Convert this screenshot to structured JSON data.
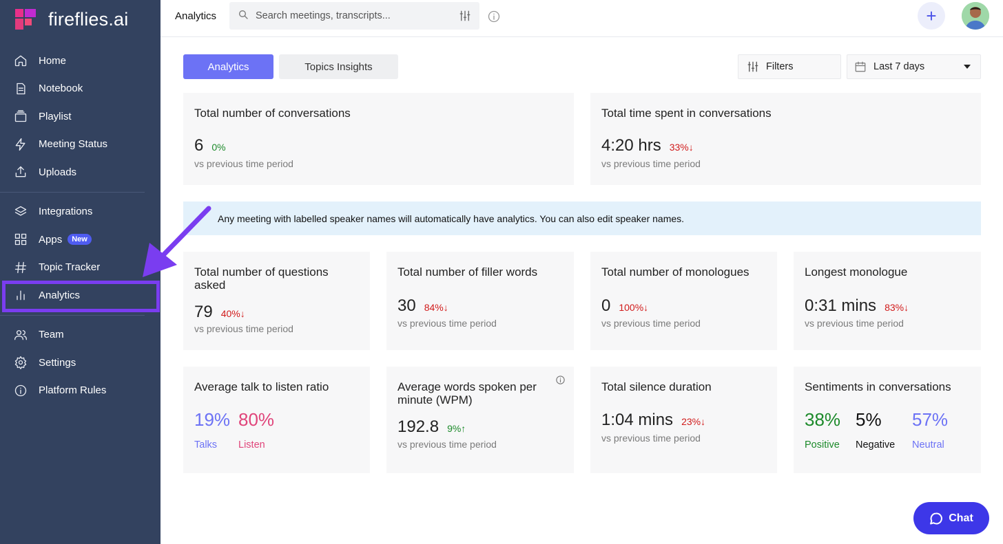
{
  "brand": {
    "name": "fireflies.ai"
  },
  "sidebar": {
    "items": [
      {
        "label": "Home",
        "icon": "home-icon"
      },
      {
        "label": "Notebook",
        "icon": "notebook-icon"
      },
      {
        "label": "Playlist",
        "icon": "playlist-icon"
      },
      {
        "label": "Meeting Status",
        "icon": "lightning-icon"
      },
      {
        "label": "Uploads",
        "icon": "upload-icon"
      },
      {
        "label": "Integrations",
        "icon": "layers-icon"
      },
      {
        "label": "Apps",
        "icon": "grid-icon",
        "badge": "New"
      },
      {
        "label": "Topic Tracker",
        "icon": "hash-icon"
      },
      {
        "label": "Analytics",
        "icon": "bar-chart-icon"
      },
      {
        "label": "Team",
        "icon": "team-icon"
      },
      {
        "label": "Settings",
        "icon": "gear-icon"
      },
      {
        "label": "Platform Rules",
        "icon": "info-icon"
      }
    ]
  },
  "header": {
    "title": "Analytics",
    "search_placeholder": "Search meetings, transcripts..."
  },
  "tabs": {
    "analytics": "Analytics",
    "topics": "Topics Insights"
  },
  "controls": {
    "filters": "Filters",
    "date_range": "Last 7 days"
  },
  "summary": {
    "conversations": {
      "title": "Total number of conversations",
      "value": "6",
      "delta": "0%",
      "vs": "vs previous time period"
    },
    "time_spent": {
      "title": "Total time spent in conversations",
      "value": "4:20 hrs",
      "delta": "33%↓",
      "vs": "vs previous time period"
    }
  },
  "banner": {
    "text": "Any meeting with labelled speaker names will automatically have analytics. You can also edit speaker names."
  },
  "metrics": {
    "questions": {
      "title": "Total number of questions asked",
      "value": "79",
      "delta": "40%↓",
      "vs": "vs previous time period"
    },
    "filler": {
      "title": "Total number of filler words",
      "value": "30",
      "delta": "84%↓",
      "vs": "vs previous time period"
    },
    "monologues": {
      "title": "Total number of monologues",
      "value": "0",
      "delta": "100%↓",
      "vs": "vs previous time period"
    },
    "longest": {
      "title": "Longest monologue",
      "value": "0:31 mins",
      "delta": "83%↓",
      "vs": "vs previous time period"
    },
    "talk_listen": {
      "title": "Average talk to listen ratio",
      "talk_value": "19%",
      "talk_label": "Talks",
      "listen_value": "80%",
      "listen_label": "Listen"
    },
    "wpm": {
      "title": "Average words spoken per minute (WPM)",
      "value": "192.8",
      "delta": "9%↑",
      "vs": "vs previous time period"
    },
    "silence": {
      "title": "Total silence duration",
      "value": "1:04 mins",
      "delta": "23%↓",
      "vs": "vs previous time period"
    },
    "sentiments": {
      "title": "Sentiments in conversations",
      "positive_value": "38%",
      "positive_label": "Positive",
      "negative_value": "5%",
      "negative_label": "Negative",
      "neutral_value": "57%",
      "neutral_label": "Neutral"
    }
  },
  "chat": {
    "label": "Chat"
  },
  "colors": {
    "sidebar": "#33425f",
    "accent": "#6c72f5",
    "highlight": "#7a3df0",
    "positive": "#1c8a2a",
    "negative": "#d11a1a"
  }
}
